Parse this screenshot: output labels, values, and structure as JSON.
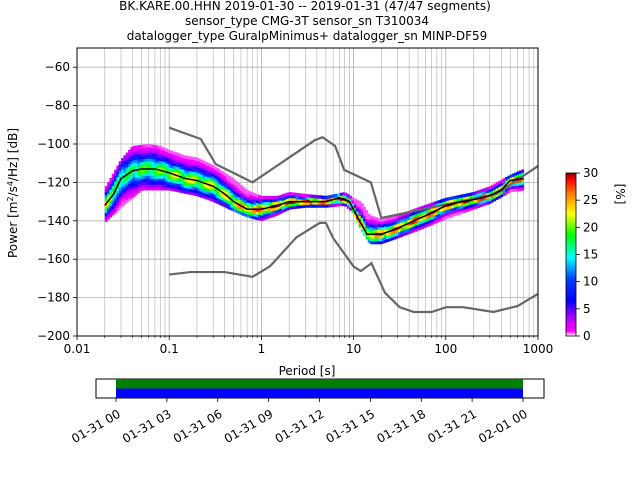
{
  "chart_data": [
    {
      "type": "heatmap",
      "title_lines": [
        "BK.KARE.00.HHN   2019-01-30 -- 2019-01-31  (47/47 segments)",
        "sensor_type CMG-3T sensor_sn T310034",
        "datalogger_type GuralpMinimus+ datalogger_sn MINP-DF59"
      ],
      "xlabel": "Period [s]",
      "ylabel_parts": [
        "Power [m",
        "2",
        "/s",
        "4",
        "/Hz] [dB]"
      ],
      "xscale": "log",
      "xlim": [
        0.01,
        1000
      ],
      "ylim": [
        -200,
        -50
      ],
      "xticks": [
        {
          "value": 0.01,
          "label": "0.01"
        },
        {
          "value": 0.1,
          "label": "0.1"
        },
        {
          "value": 1,
          "label": "1"
        },
        {
          "value": 10,
          "label": "10"
        },
        {
          "value": 100,
          "label": "100"
        },
        {
          "value": 1000,
          "label": "1000"
        }
      ],
      "yticks": [
        {
          "value": -60,
          "label": "−60"
        },
        {
          "value": -80,
          "label": "−80"
        },
        {
          "value": -100,
          "label": "−100"
        },
        {
          "value": -120,
          "label": "−120"
        },
        {
          "value": -140,
          "label": "−140"
        },
        {
          "value": -160,
          "label": "−160"
        },
        {
          "value": -180,
          "label": "−180"
        },
        {
          "value": -200,
          "label": "−200"
        }
      ],
      "grid": true,
      "noise_models": {
        "high": [
          [
            0.1,
            -91.5
          ],
          [
            0.22,
            -97.4
          ],
          [
            0.32,
            -110.5
          ],
          [
            0.8,
            -120
          ],
          [
            3.8,
            -98
          ],
          [
            4.6,
            -96.5
          ],
          [
            6.3,
            -101
          ],
          [
            7.9,
            -113.5
          ],
          [
            15.4,
            -120
          ],
          [
            20,
            -138.5
          ],
          [
            354.8,
            -126
          ],
          [
            1000,
            -111.5
          ]
        ],
        "low": [
          [
            0.1,
            -168
          ],
          [
            0.17,
            -166.7
          ],
          [
            0.4,
            -166.7
          ],
          [
            0.8,
            -169.2
          ],
          [
            1.24,
            -163.7
          ],
          [
            2.4,
            -148.6
          ],
          [
            4.3,
            -141.1
          ],
          [
            5,
            -141.1
          ],
          [
            6,
            -149
          ],
          [
            10,
            -163.8
          ],
          [
            12,
            -166.2
          ],
          [
            15.6,
            -162.1
          ],
          [
            21.9,
            -177.5
          ],
          [
            31.6,
            -185
          ],
          [
            45,
            -187.5
          ],
          [
            70,
            -187.5
          ],
          [
            101,
            -185
          ],
          [
            154,
            -185
          ],
          [
            328,
            -187.5
          ],
          [
            600,
            -184.4
          ],
          [
            1000,
            -178
          ]
        ]
      },
      "median": [
        [
          0.02,
          -132
        ],
        [
          0.025,
          -126
        ],
        [
          0.03,
          -118
        ],
        [
          0.04,
          -114
        ],
        [
          0.05,
          -113
        ],
        [
          0.07,
          -113
        ],
        [
          0.1,
          -115
        ],
        [
          0.15,
          -118
        ],
        [
          0.2,
          -119
        ],
        [
          0.3,
          -122
        ],
        [
          0.4,
          -126
        ],
        [
          0.5,
          -130
        ],
        [
          0.7,
          -134
        ],
        [
          1,
          -134
        ],
        [
          1.5,
          -132
        ],
        [
          2,
          -130
        ],
        [
          3,
          -130
        ],
        [
          5,
          -130
        ],
        [
          7,
          -128
        ],
        [
          9,
          -130
        ],
        [
          11,
          -138
        ],
        [
          14,
          -147
        ],
        [
          20,
          -147
        ],
        [
          30,
          -144
        ],
        [
          50,
          -139
        ],
        [
          70,
          -136
        ],
        [
          100,
          -132
        ],
        [
          150,
          -130
        ],
        [
          200,
          -129
        ],
        [
          300,
          -127
        ],
        [
          400,
          -124
        ],
        [
          500,
          -119
        ],
        [
          700,
          -118
        ]
      ],
      "pdf_band": {
        "upper": [
          [
            0.02,
            -123
          ],
          [
            0.03,
            -108
          ],
          [
            0.04,
            -101
          ],
          [
            0.06,
            -100
          ],
          [
            0.08,
            -101
          ],
          [
            0.1,
            -103
          ],
          [
            0.15,
            -106
          ],
          [
            0.2,
            -107
          ],
          [
            0.3,
            -111
          ],
          [
            0.5,
            -118
          ],
          [
            0.7,
            -124
          ],
          [
            1,
            -127
          ],
          [
            1.5,
            -127
          ],
          [
            2,
            -125
          ],
          [
            3,
            -126
          ],
          [
            5,
            -127
          ],
          [
            8,
            -125
          ],
          [
            10,
            -128
          ],
          [
            12,
            -130
          ],
          [
            15,
            -137
          ],
          [
            20,
            -139
          ],
          [
            30,
            -137
          ],
          [
            50,
            -133
          ],
          [
            100,
            -128
          ],
          [
            200,
            -125
          ],
          [
            300,
            -122
          ],
          [
            500,
            -116
          ],
          [
            700,
            -113
          ]
        ],
        "lower": [
          [
            0.02,
            -141
          ],
          [
            0.03,
            -133
          ],
          [
            0.05,
            -124
          ],
          [
            0.1,
            -124
          ],
          [
            0.2,
            -127
          ],
          [
            0.3,
            -130
          ],
          [
            0.5,
            -135
          ],
          [
            0.7,
            -138
          ],
          [
            1,
            -140
          ],
          [
            1.5,
            -137
          ],
          [
            2,
            -134
          ],
          [
            3,
            -133
          ],
          [
            5,
            -133
          ],
          [
            8,
            -132
          ],
          [
            10,
            -136
          ],
          [
            12,
            -145
          ],
          [
            15,
            -152
          ],
          [
            20,
            -152
          ],
          [
            30,
            -149
          ],
          [
            50,
            -145
          ],
          [
            100,
            -139
          ],
          [
            200,
            -134
          ],
          [
            300,
            -131
          ],
          [
            500,
            -125
          ],
          [
            700,
            -124
          ]
        ]
      },
      "colorbar": {
        "label": "[%]",
        "range": [
          0,
          30
        ],
        "ticks": [
          {
            "value": 0,
            "label": "0"
          },
          {
            "value": 5,
            "label": "5"
          },
          {
            "value": 10,
            "label": "10"
          },
          {
            "value": 15,
            "label": "15"
          },
          {
            "value": 20,
            "label": "20"
          },
          {
            "value": 25,
            "label": "25"
          },
          {
            "value": 30,
            "label": "30"
          }
        ]
      }
    },
    {
      "type": "bar",
      "description": "data coverage timeline",
      "xticks": [
        "01-31 00",
        "01-31 03",
        "01-31 06",
        "01-31 09",
        "01-31 12",
        "01-31 15",
        "01-31 18",
        "01-31 21",
        "02-01 00"
      ],
      "coverage": [
        {
          "color": "#008000",
          "start_hours": 0,
          "end_hours": 24
        },
        {
          "color": "#0000ff",
          "start_hours": 0,
          "end_hours": 24
        }
      ]
    }
  ]
}
